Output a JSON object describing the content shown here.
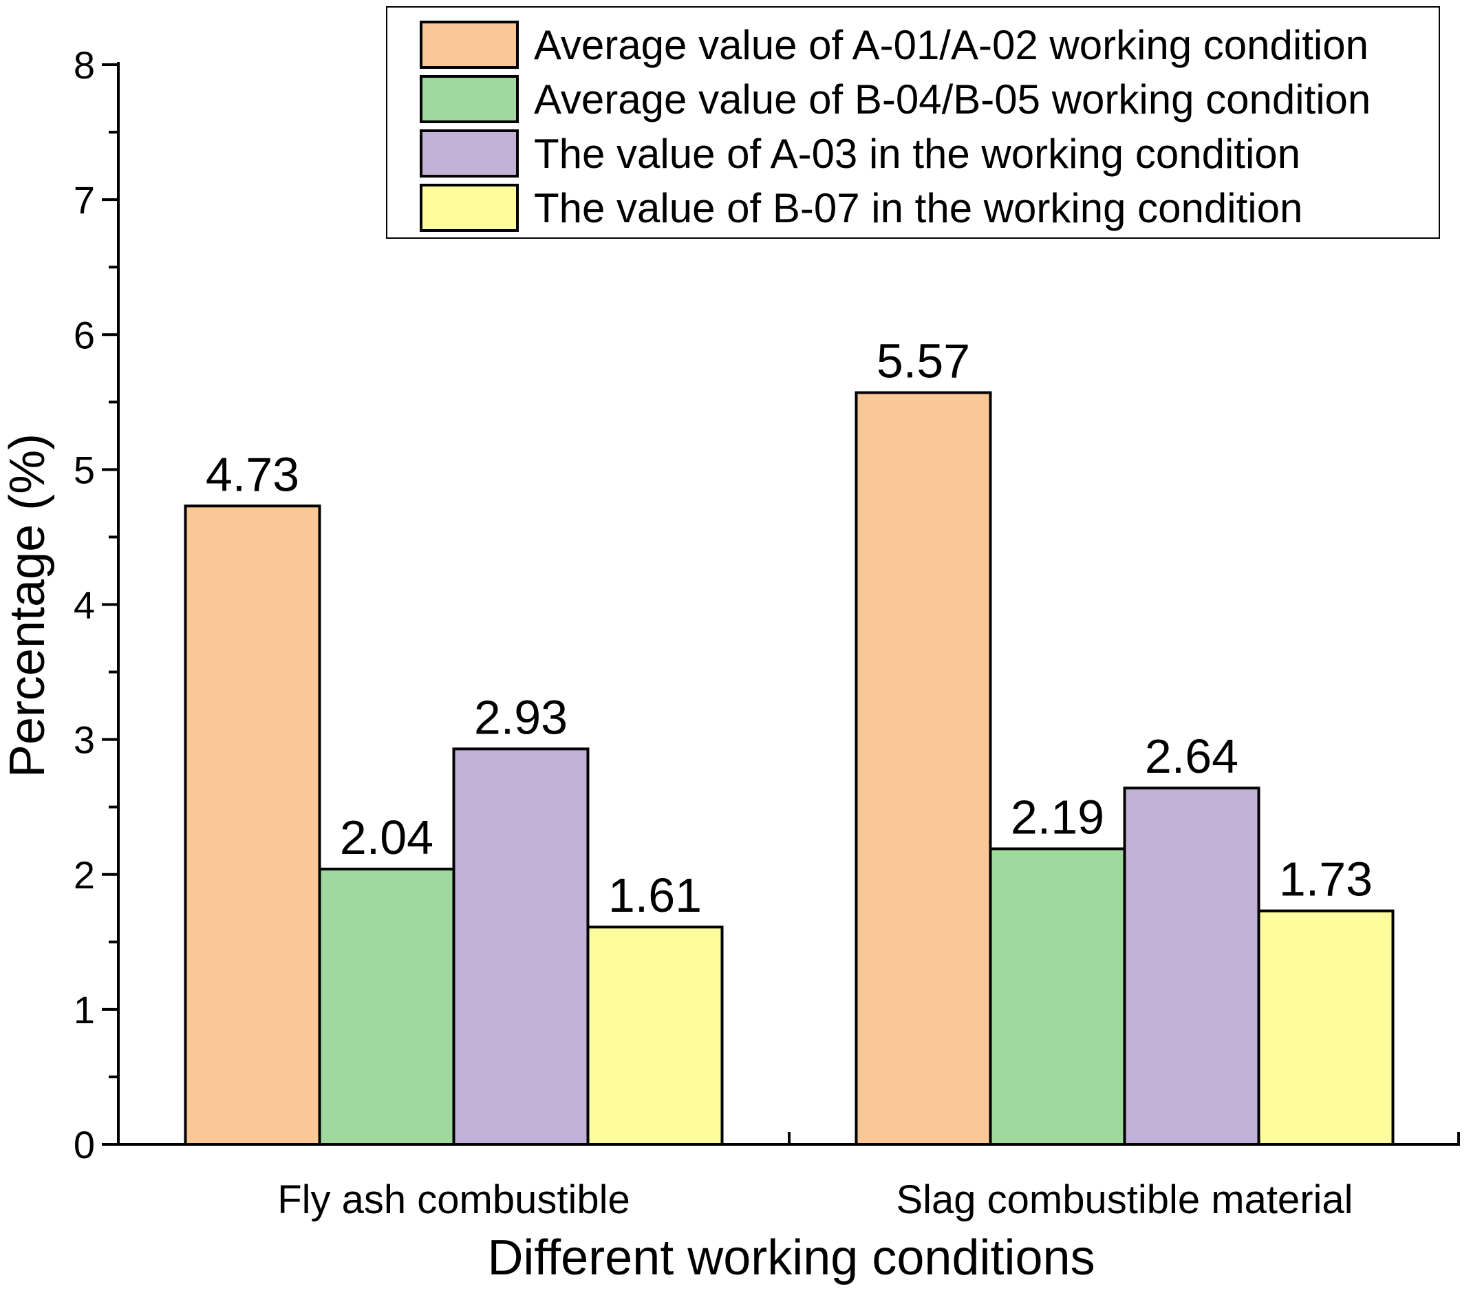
{
  "chart_data": {
    "type": "bar",
    "xlabel": "Different working conditions",
    "ylabel": "Percentage (%)",
    "ylim": [
      0,
      8
    ],
    "yticks": [
      "0",
      "1",
      "2",
      "3",
      "4",
      "5",
      "6",
      "7",
      "8"
    ],
    "grid": false,
    "legend_position": "top-right",
    "categories": [
      "Fly ash combustible",
      "Slag combustible material"
    ],
    "series": [
      {
        "name": "Average value of A-01/A-02 working condition",
        "color": "#F9C896",
        "values": [
          4.73,
          5.57
        ],
        "labels": [
          "4.73",
          "5.57"
        ]
      },
      {
        "name": "Average value of B-04/B-05 working condition",
        "color": "#A0D99D",
        "values": [
          2.04,
          2.19
        ],
        "labels": [
          "2.04",
          "2.19"
        ]
      },
      {
        "name": "The value of A-03 in the working condition",
        "color": "#C2B1D6",
        "values": [
          2.93,
          2.64
        ],
        "labels": [
          "2.93",
          "2.64"
        ]
      },
      {
        "name": "The value of B-07 in the working condition",
        "color": "#FEFC9C",
        "values": [
          1.61,
          1.73
        ],
        "labels": [
          "1.61",
          "1.73"
        ]
      }
    ]
  }
}
